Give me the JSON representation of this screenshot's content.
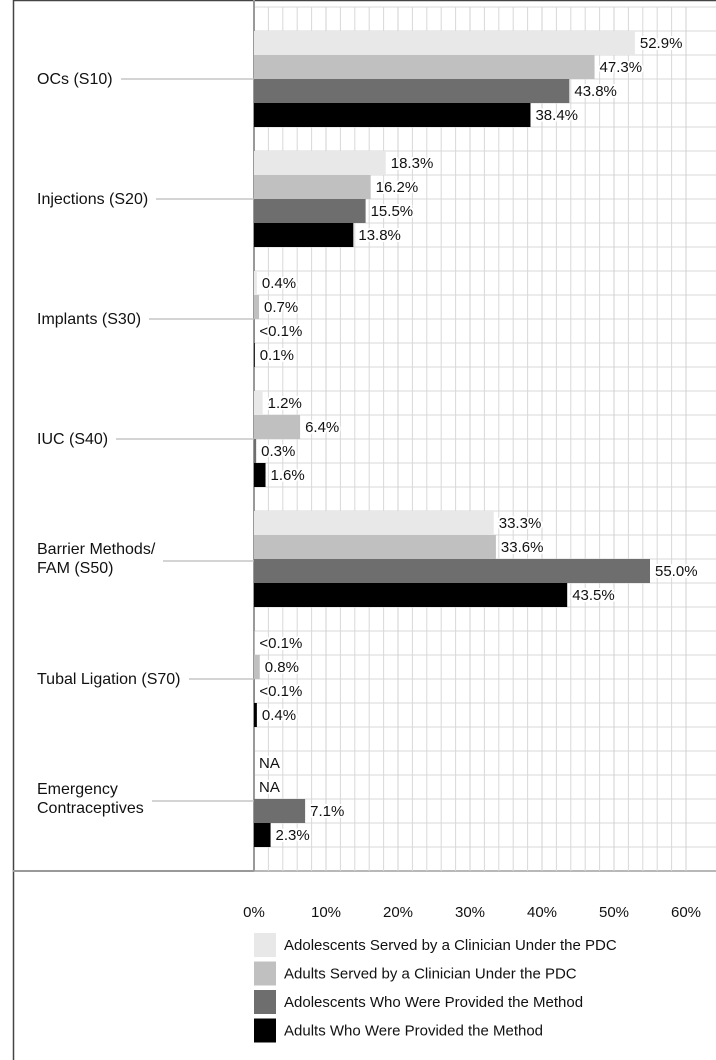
{
  "chart_data": {
    "type": "bar",
    "orientation": "horizontal",
    "categories": [
      "OCs (S10)",
      "Injections (S20)",
      "Implants (S30)",
      "IUC (S40)",
      "Barrier Methods/\nFAM (S50)",
      "Tubal Ligation (S70)",
      "Emergency\nContraceptives"
    ],
    "series": [
      {
        "name": "Adolescents Served by a Clinician Under the PDC",
        "color": "#e8e8e8",
        "values": [
          52.9,
          18.3,
          0.4,
          1.2,
          33.3,
          0.05,
          null
        ],
        "value_labels": [
          "52.9%",
          "18.3%",
          "0.4%",
          "1.2%",
          "33.3%",
          "<0.1%",
          "NA"
        ]
      },
      {
        "name": "Adults Served by a Clinician Under the PDC",
        "color": "#c0c0c0",
        "values": [
          47.3,
          16.2,
          0.7,
          6.4,
          33.6,
          0.8,
          null
        ],
        "value_labels": [
          "47.3%",
          "16.2%",
          "0.7%",
          "6.4%",
          "33.6%",
          "0.8%",
          "NA"
        ]
      },
      {
        "name": "Adolescents Who Were Provided the Method",
        "color": "#6e6e6e",
        "values": [
          43.8,
          15.5,
          0.05,
          0.3,
          55.0,
          0.05,
          7.1
        ],
        "value_labels": [
          "43.8%",
          "15.5%",
          "<0.1%",
          "0.3%",
          "55.0%",
          "<0.1%",
          "7.1%"
        ]
      },
      {
        "name": "Adults Who Were Provided the Method",
        "color": "#000000",
        "values": [
          38.4,
          13.8,
          0.1,
          1.6,
          43.5,
          0.4,
          2.3
        ],
        "value_labels": [
          "38.4%",
          "13.8%",
          "0.1%",
          "1.6%",
          "43.5%",
          "0.4%",
          "2.3%"
        ]
      }
    ],
    "xlim": [
      0,
      60
    ],
    "xticks": [
      {
        "value": 0,
        "label": "0%"
      },
      {
        "value": 10,
        "label": "10%"
      },
      {
        "value": 20,
        "label": "20%"
      },
      {
        "value": 30,
        "label": "30%"
      },
      {
        "value": 40,
        "label": "40%"
      },
      {
        "value": 50,
        "label": "50%"
      },
      {
        "value": 60,
        "label": "60%"
      }
    ],
    "grid": true
  }
}
